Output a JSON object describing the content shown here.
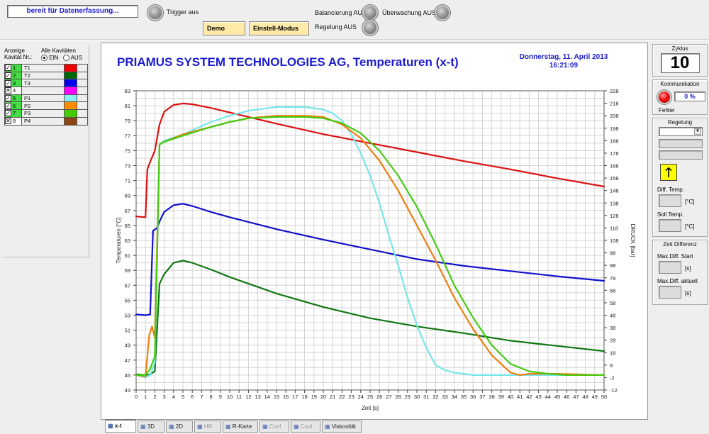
{
  "status": {
    "text": "bereit für Datenerfassung..."
  },
  "toolbar": {
    "trigger_label": "Trigger aus",
    "demo_label": "Demo",
    "setup_mode_label": "Einstell-Modus",
    "balancing_label": "Balancierung AUS",
    "control_label": "Regelung AUS",
    "monitoring_label": "Überwachung AUS"
  },
  "left_panel": {
    "display_header": "Anzeige\nKavität Nr.:",
    "all_cavities_label": "Alle Kavitäten",
    "on_label": "EIN",
    "off_label": "AUS",
    "cavities": [
      {
        "num": "1",
        "name": "T1",
        "color": "#ee0000",
        "checked": true,
        "row_color": "#44dd44"
      },
      {
        "num": "2",
        "name": "T2",
        "color": "#006600",
        "checked": true,
        "row_color": "#44dd44"
      },
      {
        "num": "3",
        "name": "T3",
        "color": "#0000ee",
        "checked": true,
        "row_color": "#44dd44"
      },
      {
        "num": "4",
        "name": "",
        "color": "#ff00ff",
        "checked": false,
        "row_color": "#ffffff"
      },
      {
        "num": "5",
        "name": "P1",
        "color": "#88eeee",
        "checked": true,
        "row_color": "#44dd44"
      },
      {
        "num": "6",
        "name": "P2",
        "color": "#ff8c00",
        "checked": true,
        "row_color": "#44dd44"
      },
      {
        "num": "7",
        "name": "P3",
        "color": "#44cc00",
        "checked": true,
        "row_color": "#44dd44"
      },
      {
        "num": "8",
        "name": "P4",
        "color": "#8b4513",
        "checked": false,
        "row_color": "#ffffff"
      }
    ]
  },
  "main": {
    "title": "PRIAMUS SYSTEM TECHNOLOGIES AG, Temperaturen (x-t)",
    "date_line1": "Donnerstag, 11. April 2013",
    "date_line2": "16:21:09"
  },
  "right_panel": {
    "cycle_label": "Zyklus",
    "cycle_value": "10",
    "communication_label": "Kommunikation",
    "communication_value": "0 %",
    "error_label": "Fehler",
    "control_label": "Regelung",
    "diff_temp_label": "Diff. Temp.",
    "diff_temp_unit": "[°C]",
    "set_temp_label": "Soll Temp.",
    "set_temp_unit": "[°C]",
    "time_diff_label": "Zeit Differenz",
    "max_diff_start_label": "Max.Diff. Start",
    "max_diff_start_unit": "[s]",
    "max_diff_current_label": "Max.Diff. aktuell",
    "max_diff_current_unit": "[s]"
  },
  "tabs": [
    {
      "label": "x-t",
      "active": true,
      "disabled": false
    },
    {
      "label": "3D",
      "active": false,
      "disabled": false
    },
    {
      "label": "2D",
      "active": false,
      "disabled": false
    },
    {
      "label": "HR",
      "active": false,
      "disabled": true
    },
    {
      "label": "R-Karte",
      "active": false,
      "disabled": false
    },
    {
      "label": "Cool",
      "active": false,
      "disabled": true
    },
    {
      "label": "Cool",
      "active": false,
      "disabled": true
    },
    {
      "label": "Viskosität",
      "active": false,
      "disabled": false
    }
  ],
  "chart_data": {
    "type": "line",
    "xlabel": "Zeit [s]",
    "ylabel": "Temperaturen [°C]",
    "y2label": "DRUCK [bar]",
    "xlim": [
      0,
      50
    ],
    "ylim": [
      43,
      83
    ],
    "y2lim": [
      -12,
      228
    ],
    "x_ticks": [
      0,
      1,
      2,
      3,
      4,
      5,
      6,
      7,
      8,
      9,
      10,
      11,
      12,
      13,
      14,
      15,
      16,
      17,
      18,
      19,
      20,
      21,
      22,
      23,
      24,
      25,
      26,
      27,
      28,
      29,
      30,
      31,
      32,
      33,
      34,
      35,
      36,
      37,
      38,
      39,
      40,
      41,
      42,
      43,
      44,
      45,
      46,
      47,
      48,
      49,
      50
    ],
    "y_ticks": [
      43,
      45,
      47,
      49,
      51,
      53,
      55,
      57,
      59,
      61,
      63,
      65,
      67,
      69,
      71,
      73,
      75,
      77,
      79,
      81,
      83
    ],
    "y2_ticks": [
      -12,
      -2,
      8,
      18,
      28,
      38,
      48,
      58,
      68,
      78,
      88,
      98,
      108,
      118,
      128,
      138,
      148,
      158,
      168,
      178,
      188,
      198,
      208,
      218,
      228
    ],
    "grid": true,
    "series": [
      {
        "name": "T1",
        "axis": "left",
        "color": "#dd1111",
        "x": [
          0,
          1,
          1.2,
          1.5,
          2,
          2.5,
          3,
          4,
          5,
          6,
          8,
          10,
          12,
          15,
          20,
          25,
          30,
          35,
          40,
          45,
          50
        ],
        "y": [
          66.2,
          66.1,
          72.5,
          73.5,
          75,
          78.5,
          80.2,
          81.1,
          81.3,
          81.2,
          80.7,
          80.1,
          79.5,
          78.6,
          77.2,
          76,
          74.8,
          73.6,
          72.5,
          71.3,
          70.2
        ]
      },
      {
        "name": "T2",
        "axis": "left",
        "color": "#117711",
        "x": [
          0,
          1,
          1.5,
          2,
          2.5,
          3,
          4,
          5,
          6,
          8,
          10,
          15,
          20,
          25,
          30,
          35,
          40,
          45,
          50
        ],
        "y": [
          45.1,
          45,
          45.1,
          45.5,
          57.2,
          58.5,
          60,
          60.3,
          60,
          59.1,
          58.1,
          55.9,
          54.1,
          52.6,
          51.5,
          50.6,
          49.6,
          48.9,
          48.2
        ]
      },
      {
        "name": "T3",
        "axis": "left",
        "color": "#1111cc",
        "x": [
          0,
          1,
          1.5,
          1.8,
          2.2,
          2.6,
          3,
          4,
          5,
          6,
          8,
          10,
          15,
          20,
          25,
          30,
          35,
          40,
          45,
          50
        ],
        "y": [
          53.1,
          53,
          53.1,
          64.3,
          64.6,
          65.8,
          66.8,
          67.7,
          67.9,
          67.6,
          66.8,
          66.1,
          64.5,
          63.1,
          61.8,
          60.5,
          59.6,
          58.9,
          58.2,
          57.6
        ]
      },
      {
        "name": "P1",
        "axis": "right",
        "color": "#77e5ea",
        "x": [
          0,
          1,
          1.5,
          2,
          2.5,
          3,
          5,
          8,
          10,
          12,
          15,
          18,
          20,
          21,
          22,
          23,
          24,
          25,
          26,
          27,
          28,
          29,
          30,
          31,
          32,
          33,
          34,
          36,
          38,
          40,
          45,
          50
        ],
        "y": [
          0,
          -2,
          0,
          10,
          185,
          188,
          193,
          203,
          208,
          212,
          215,
          215,
          213,
          210,
          204,
          193,
          178,
          160,
          138,
          112,
          88,
          62,
          40,
          22,
          8,
          4,
          2,
          0,
          0,
          0,
          0,
          0
        ]
      },
      {
        "name": "P2",
        "axis": "right",
        "color": "#ee7d11",
        "x": [
          0,
          1,
          1.4,
          1.7,
          2,
          2.5,
          3,
          5,
          8,
          10,
          12,
          15,
          18,
          20,
          22,
          24,
          26,
          28,
          30,
          32,
          34,
          36,
          38,
          40,
          41,
          42,
          45,
          50
        ],
        "y": [
          0,
          -1,
          32,
          39,
          30,
          185,
          187,
          193,
          199,
          203,
          206,
          208,
          208,
          207,
          201,
          190,
          172,
          148,
          120,
          92,
          62,
          37,
          16,
          2,
          0,
          1,
          1,
          0
        ]
      },
      {
        "name": "P3",
        "axis": "right",
        "color": "#44cc11",
        "x": [
          0,
          1,
          1.5,
          2,
          2.5,
          3,
          5,
          8,
          10,
          12,
          15,
          18,
          20,
          22,
          24,
          26,
          28,
          30,
          32,
          34,
          36,
          38,
          40,
          42,
          44,
          46,
          48,
          50
        ],
        "y": [
          0,
          0,
          5,
          15,
          185,
          187,
          192,
          199,
          203,
          206,
          207,
          207,
          206,
          202,
          194,
          180,
          160,
          135,
          105,
          72,
          46,
          24,
          9,
          3,
          1,
          0,
          0,
          0
        ]
      }
    ]
  }
}
